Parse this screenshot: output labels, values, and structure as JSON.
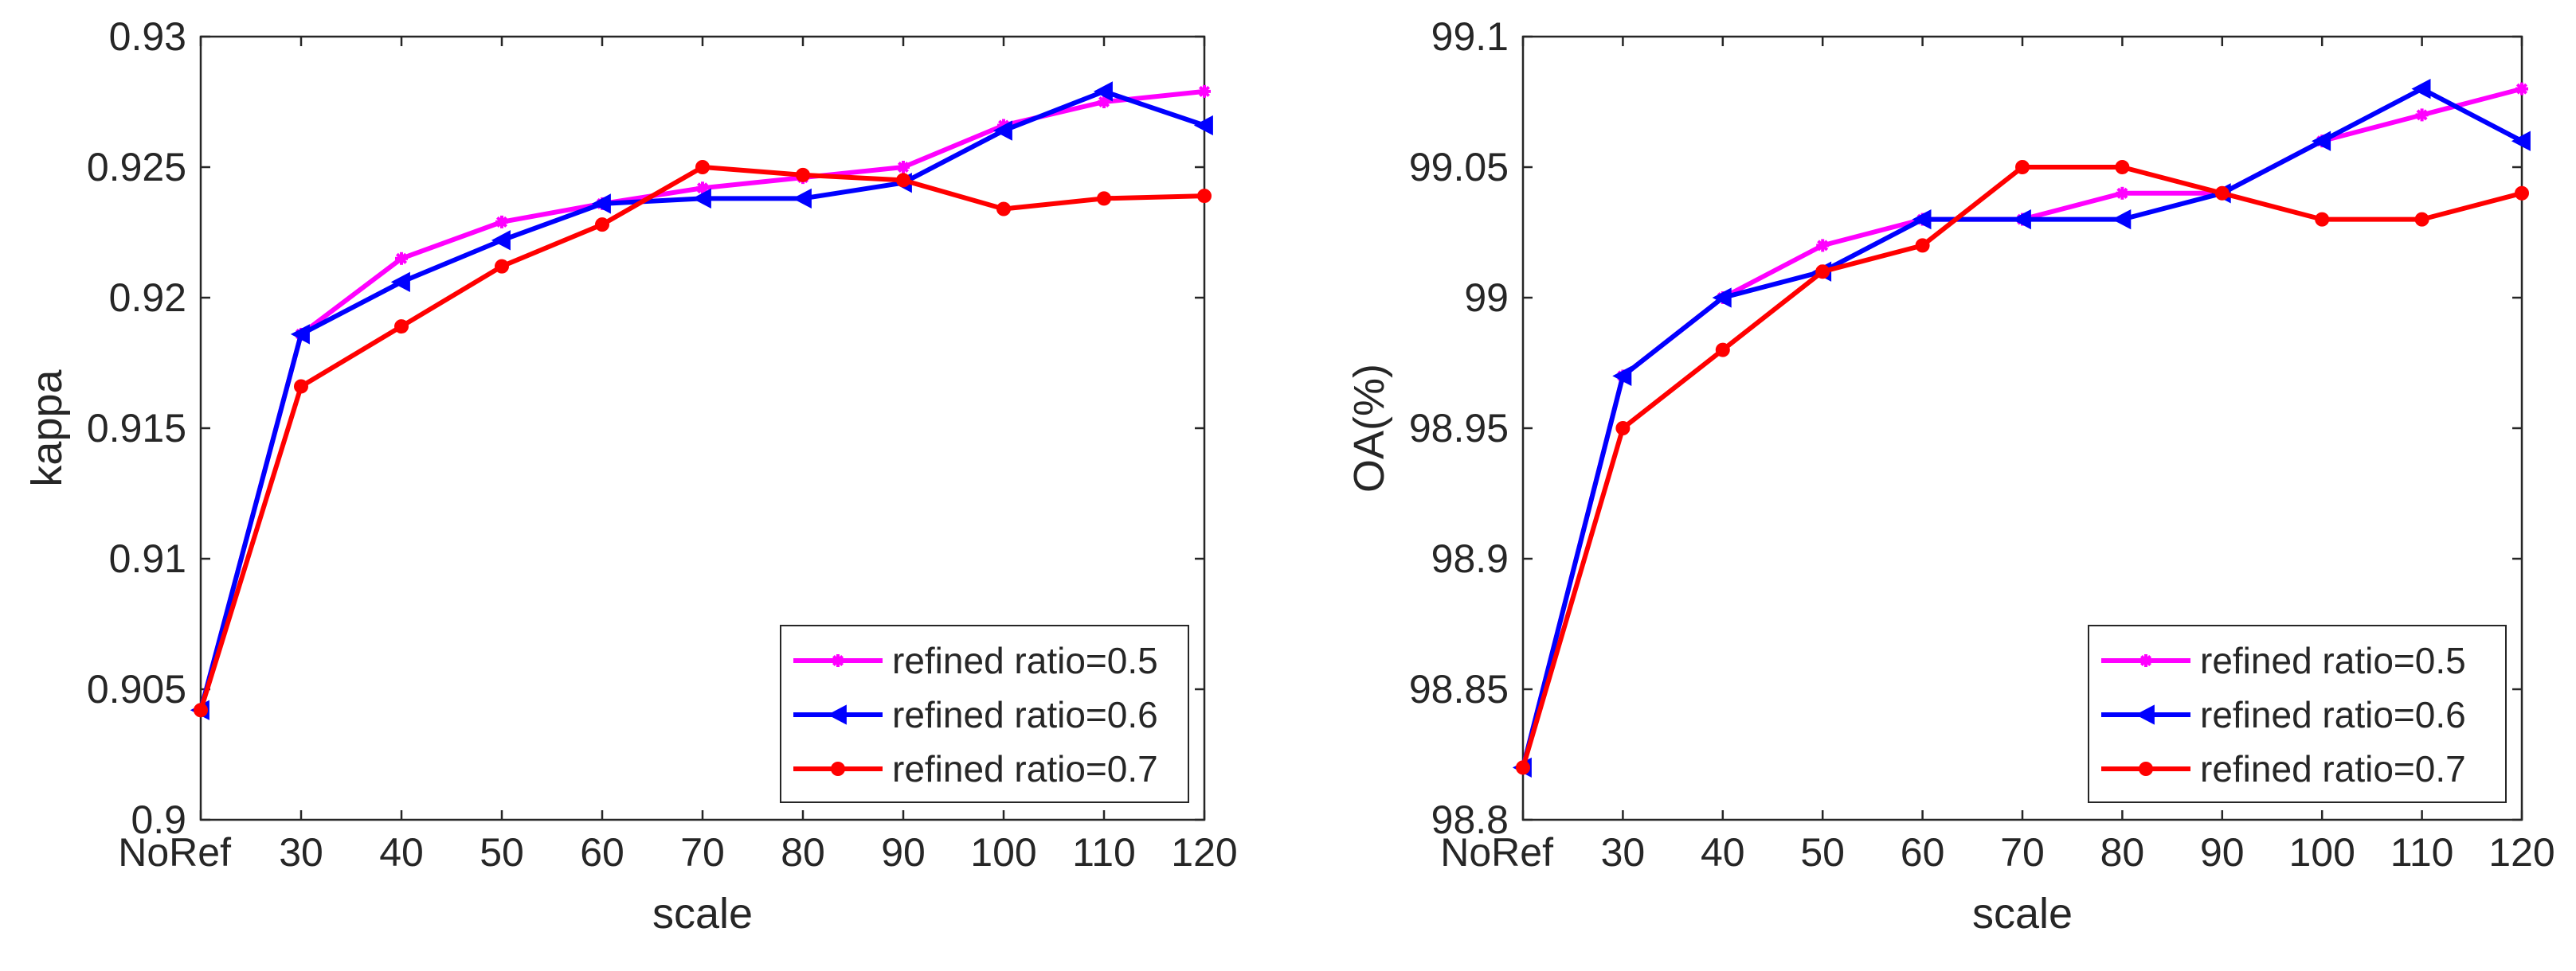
{
  "chart_data": [
    {
      "type": "line",
      "title": "",
      "xlabel": "scale",
      "ylabel": "kappa",
      "categories": [
        "NoRef",
        "30",
        "40",
        "50",
        "60",
        "70",
        "80",
        "90",
        "100",
        "110",
        "120"
      ],
      "ylim": [
        0.9,
        0.93
      ],
      "yticks": [
        "0.9",
        "0.905",
        "0.91",
        "0.915",
        "0.92",
        "0.925",
        "0.93"
      ],
      "grid": false,
      "legend_position": "bottom-right",
      "series": [
        {
          "name": "refined ratio=0.5",
          "color": "#ff00ff",
          "marker": "asterisk",
          "values": [
            0.9042,
            0.9186,
            0.9215,
            0.9229,
            0.9236,
            0.9242,
            0.9246,
            0.925,
            0.9266,
            0.9275,
            0.9279
          ]
        },
        {
          "name": "refined ratio=0.6",
          "color": "#0000ff",
          "marker": "triangle-left",
          "values": [
            0.9042,
            0.9186,
            0.9206,
            0.9222,
            0.9236,
            0.9238,
            0.9238,
            0.9244,
            0.9264,
            0.9279,
            0.9266
          ]
        },
        {
          "name": "refined ratio=0.7",
          "color": "#ff0000",
          "marker": "circle",
          "values": [
            0.9042,
            0.9166,
            0.9189,
            0.9212,
            0.9228,
            0.925,
            0.9247,
            0.9245,
            0.9234,
            0.9238,
            0.9239
          ]
        }
      ]
    },
    {
      "type": "line",
      "title": "",
      "xlabel": "scale",
      "ylabel": "OA(%)",
      "categories": [
        "NoRef",
        "30",
        "40",
        "50",
        "60",
        "70",
        "80",
        "90",
        "100",
        "110",
        "120"
      ],
      "ylim": [
        98.8,
        99.1
      ],
      "yticks": [
        "98.8",
        "98.85",
        "98.9",
        "98.95",
        "99",
        "99.05",
        "99.1"
      ],
      "grid": false,
      "legend_position": "bottom-right",
      "series": [
        {
          "name": "refined ratio=0.5",
          "color": "#ff00ff",
          "marker": "asterisk",
          "values": [
            98.82,
            98.97,
            99.0,
            99.02,
            99.03,
            99.03,
            99.04,
            99.04,
            99.06,
            99.07,
            99.08
          ]
        },
        {
          "name": "refined ratio=0.6",
          "color": "#0000ff",
          "marker": "triangle-left",
          "values": [
            98.82,
            98.97,
            99.0,
            99.01,
            99.03,
            99.03,
            99.03,
            99.04,
            99.06,
            99.08,
            99.06
          ]
        },
        {
          "name": "refined ratio=0.7",
          "color": "#ff0000",
          "marker": "circle",
          "values": [
            98.82,
            98.95,
            98.98,
            99.01,
            99.02,
            99.05,
            99.05,
            99.04,
            99.03,
            99.03,
            99.04
          ]
        }
      ]
    }
  ]
}
